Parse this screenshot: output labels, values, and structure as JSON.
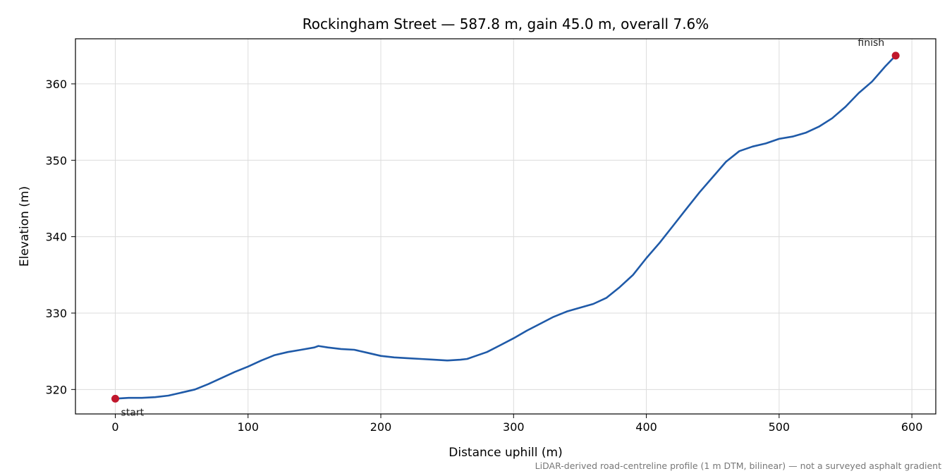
{
  "chart_data": {
    "type": "line",
    "title": "Rockingham Street — 587.8 m, gain 45.0 m, overall 7.6%",
    "xlabel": "Distance uphill (m)",
    "ylabel": "Elevation (m)",
    "footnote": "LiDAR-derived road-centreline profile (1 m DTM, bilinear) — not a surveyed asphalt gradient",
    "xlim": [
      -30,
      618
    ],
    "ylim": [
      316.8,
      365.9
    ],
    "xticks": [
      0,
      100,
      200,
      300,
      400,
      500,
      600
    ],
    "yticks": [
      320,
      330,
      340,
      350,
      360
    ],
    "grid": true,
    "line_color": "#1f5aa8",
    "marker_color": "#c0172c",
    "series": [
      {
        "x": [
          0,
          10,
          20,
          30,
          40,
          50,
          60,
          70,
          80,
          90,
          100,
          110,
          120,
          130,
          140,
          150,
          153,
          160,
          170,
          180,
          190,
          200,
          210,
          220,
          230,
          240,
          250,
          260,
          265,
          270,
          280,
          290,
          300,
          310,
          320,
          330,
          340,
          350,
          360,
          370,
          380,
          390,
          400,
          410,
          420,
          430,
          440,
          450,
          460,
          470,
          480,
          490,
          500,
          510,
          520,
          530,
          540,
          550,
          560,
          570,
          580,
          587.8
        ],
        "values": [
          318.8,
          318.9,
          318.9,
          319.0,
          319.2,
          319.6,
          320.0,
          320.7,
          321.5,
          322.3,
          323.0,
          323.8,
          324.5,
          324.9,
          325.2,
          325.5,
          325.7,
          325.5,
          325.3,
          325.2,
          324.8,
          324.4,
          324.2,
          324.1,
          324.0,
          323.9,
          323.8,
          323.9,
          324.0,
          324.3,
          324.9,
          325.8,
          326.7,
          327.7,
          328.6,
          329.5,
          330.2,
          330.7,
          331.2,
          332.0,
          333.4,
          335.0,
          337.2,
          339.2,
          341.4,
          343.6,
          345.8,
          347.8,
          349.8,
          351.2,
          351.8,
          352.2,
          352.8,
          353.1,
          353.6,
          354.4,
          355.5,
          357.0,
          358.8,
          360.3,
          362.3,
          363.7
        ]
      }
    ],
    "annotations": [
      {
        "text": "start",
        "x": 0,
        "y": 318.8
      },
      {
        "text": "finish",
        "x": 587.8,
        "y": 363.7
      }
    ]
  }
}
